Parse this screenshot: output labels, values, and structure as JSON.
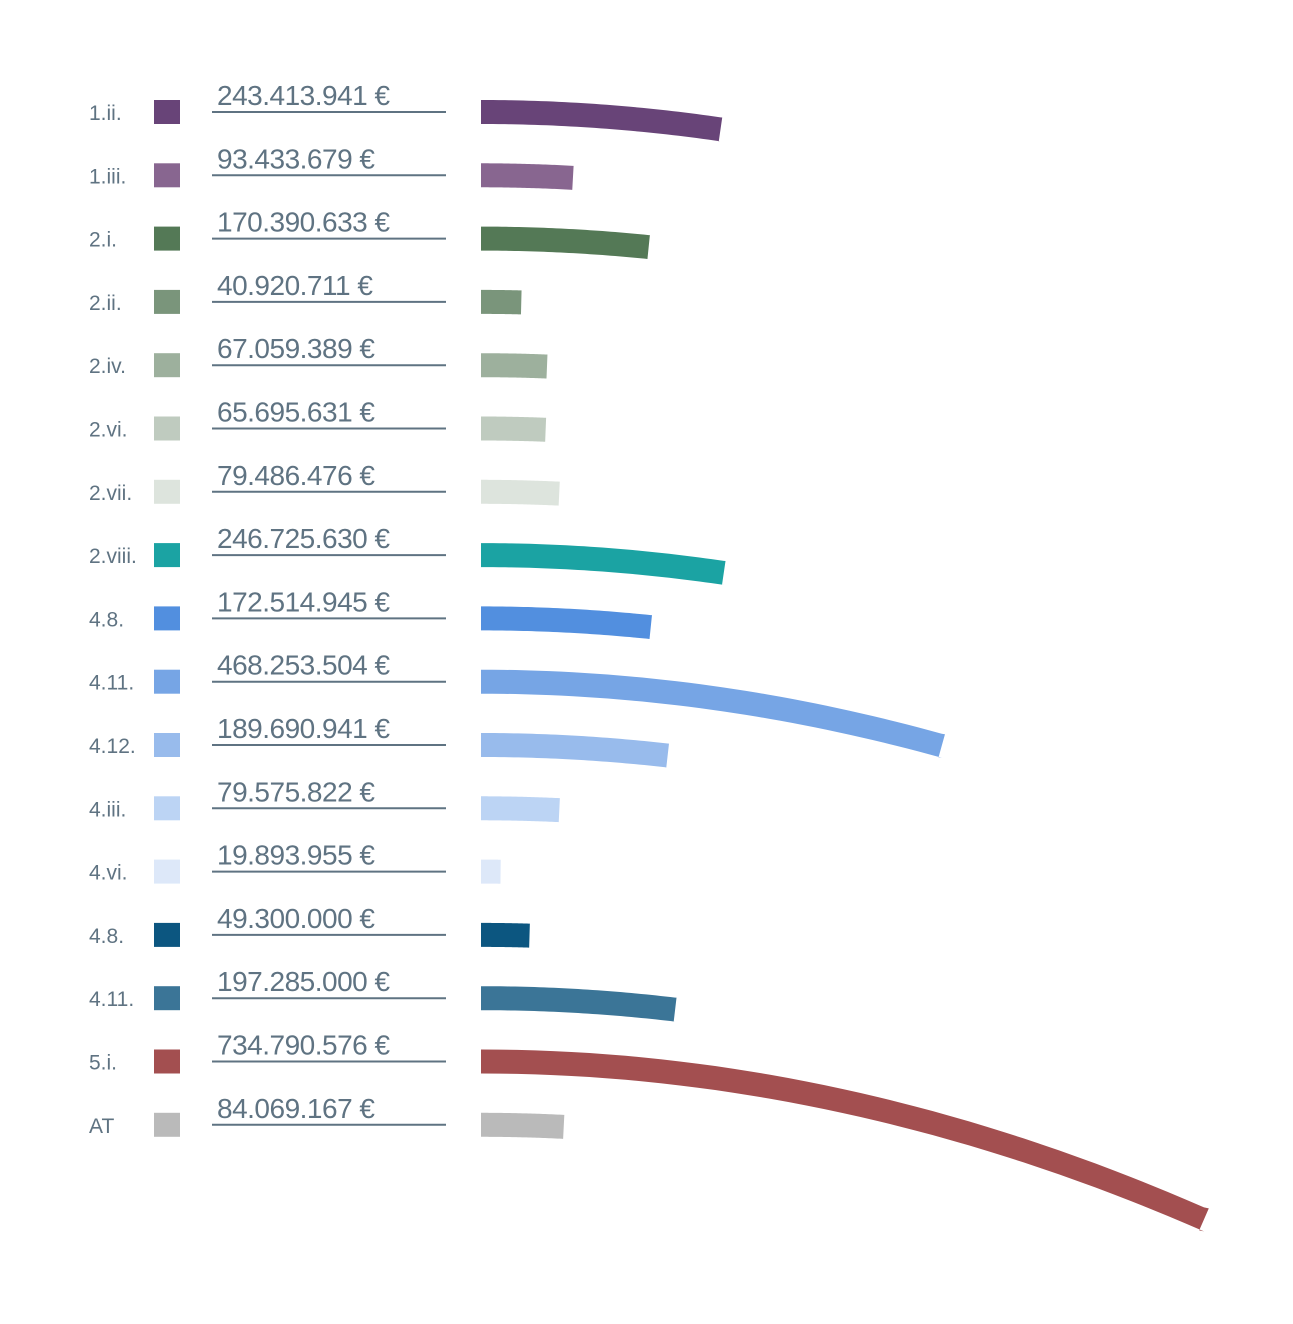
{
  "chart_data": {
    "type": "bar",
    "orientation": "horizontal-curved",
    "title": "",
    "xlabel": "",
    "ylabel": "",
    "unit": "€",
    "categories": [
      "1.ii.",
      "1.iii.",
      "2.i.",
      "2.ii.",
      "2.iv.",
      "2.vi.",
      "2.vii.",
      "2.viii.",
      "4.8.",
      "4.11.",
      "4.12.",
      "4.iii.",
      "4.vi.",
      "4.8.",
      "4.11.",
      "5.i.",
      "AT"
    ],
    "values": [
      243413941,
      93433679,
      170390633,
      40920711,
      67059389,
      65695631,
      79486476,
      246725630,
      172514945,
      468253504,
      189690941,
      79575822,
      19893955,
      49300000,
      197285000,
      734790576,
      84069167
    ],
    "value_labels": [
      "243.413.941 €",
      "93.433.679 €",
      "170.390.633 €",
      "40.920.711 €",
      "67.059.389 €",
      "65.695.631 €",
      "79.486.476 €",
      "246.725.630 €",
      "172.514.945 €",
      "468.253.504 €",
      "189.690.941 €",
      "79.575.822 €",
      "19.893.955 €",
      "49.300.000 €",
      "197.285.000 €",
      "734.790.576 €",
      "84.069.167 €"
    ],
    "colors": [
      "#684478",
      "#886690",
      "#547956",
      "#7a957b",
      "#9db09d",
      "#bfcbbf",
      "#dde4dd",
      "#1ba3a3",
      "#528fdf",
      "#76a5e5",
      "#98bbec",
      "#bcd4f4",
      "#dde8f9",
      "#0c5680",
      "#3b7597",
      "#a34f50",
      "#bababa"
    ],
    "legend": "left",
    "grid": false
  }
}
